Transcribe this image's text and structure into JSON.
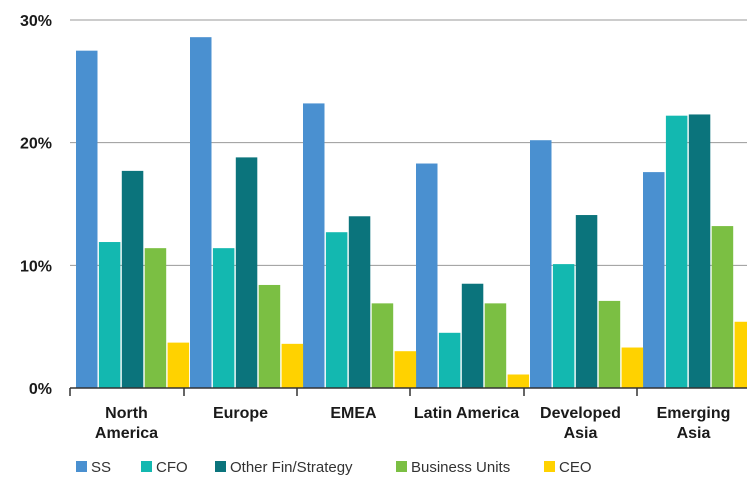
{
  "chart_data": {
    "type": "bar",
    "title": "",
    "xlabel": "",
    "ylabel": "",
    "categories": [
      [
        "North",
        "America"
      ],
      [
        "Europe"
      ],
      [
        "EMEA"
      ],
      [
        "Latin America"
      ],
      [
        "Developed",
        "Asia"
      ],
      [
        "Emerging",
        "Asia"
      ]
    ],
    "y_ticks": [
      {
        "value": 0,
        "label": "0%"
      },
      {
        "value": 10,
        "label": "10%"
      },
      {
        "value": 20,
        "label": "20%"
      },
      {
        "value": 30,
        "label": "30%"
      }
    ],
    "ylim": [
      0,
      30
    ],
    "grid": true,
    "legend_position": "bottom",
    "series": [
      {
        "name": "SS",
        "color": "#4a90d0",
        "values": [
          27.5,
          28.6,
          23.2,
          18.3,
          20.2,
          17.6
        ]
      },
      {
        "name": "CFO",
        "color": "#13b8b0",
        "values": [
          11.9,
          11.4,
          12.7,
          4.5,
          10.1,
          22.2
        ]
      },
      {
        "name": "Other Fin/Strategy",
        "color": "#0b747c",
        "values": [
          17.7,
          18.8,
          14.0,
          8.5,
          14.1,
          22.3
        ]
      },
      {
        "name": "Business Units",
        "color": "#7bbf43",
        "values": [
          11.4,
          8.4,
          6.9,
          6.9,
          7.1,
          13.2
        ]
      },
      {
        "name": "CEO",
        "color": "#ffd200",
        "values": [
          3.7,
          3.6,
          3.0,
          1.1,
          3.3,
          5.4
        ]
      }
    ]
  }
}
